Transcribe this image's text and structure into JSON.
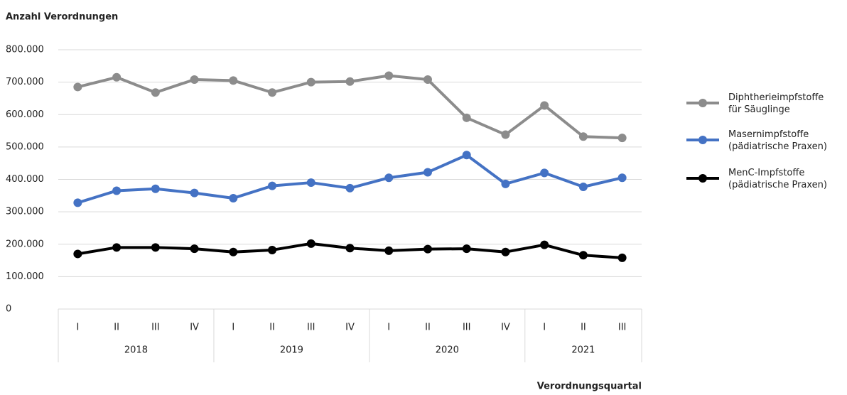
{
  "chart_data": {
    "type": "line",
    "title": "Anzahl Verordnungen",
    "x_label": "Verordnungsquartal",
    "category_groups": [
      {
        "label": "2018",
        "categories": [
          "I",
          "II",
          "III",
          "IV"
        ]
      },
      {
        "label": "2019",
        "categories": [
          "I",
          "II",
          "III",
          "IV"
        ]
      },
      {
        "label": "2020",
        "categories": [
          "I",
          "II",
          "III",
          "IV"
        ]
      },
      {
        "label": "2021",
        "categories": [
          "I",
          "II",
          "III"
        ]
      }
    ],
    "series": [
      {
        "name": "Diphtherieimpfstoffe\nfür Säuglinge",
        "color": "#8c8c8c",
        "values": [
          685000,
          715000,
          668000,
          708000,
          705000,
          668000,
          700000,
          702000,
          720000,
          708000,
          590000,
          538000,
          628000,
          532000,
          528000
        ]
      },
      {
        "name": "Masernimpfstoffe\n(pädiatrische Praxen)",
        "color": "#4472c4",
        "values": [
          328000,
          365000,
          371000,
          358000,
          342000,
          380000,
          390000,
          373000,
          405000,
          422000,
          475000,
          386000,
          420000,
          377000,
          405000
        ]
      },
      {
        "name": "MenC-Impfstoffe\n(pädiatrische Praxen)",
        "color": "#000000",
        "values": [
          170000,
          190000,
          190000,
          186000,
          176000,
          182000,
          202000,
          188000,
          180000,
          185000,
          186000,
          176000,
          198000,
          166000,
          158000
        ]
      }
    ],
    "ylim": [
      0,
      800000
    ],
    "yticks": [
      0,
      {
        "value": 100000,
        "label": "100.000"
      },
      {
        "value": 200000,
        "label": "200.000"
      },
      {
        "value": 300000,
        "label": "300.000"
      },
      {
        "value": 400000,
        "label": "400.000"
      },
      {
        "value": 500000,
        "label": "500.000"
      },
      {
        "value": 600000,
        "label": "600.000"
      },
      {
        "value": 700000,
        "label": "700.000"
      },
      {
        "value": 800000,
        "label": "800.000"
      }
    ],
    "grid": true,
    "legend": "right"
  }
}
